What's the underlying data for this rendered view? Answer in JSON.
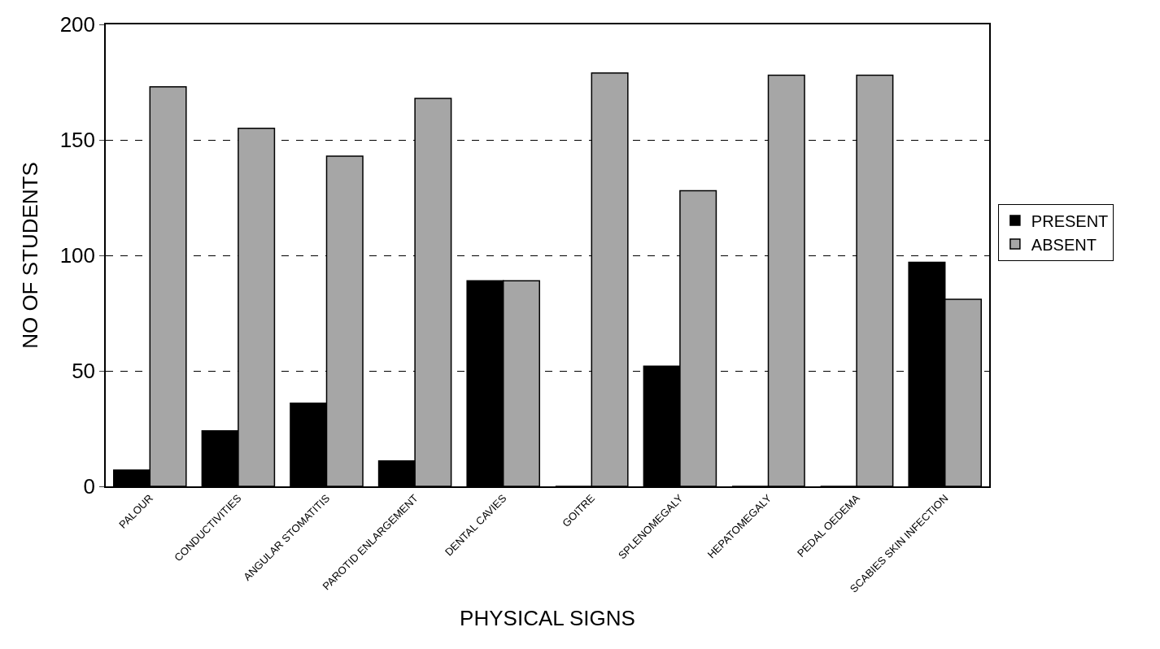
{
  "chart_data": {
    "type": "bar",
    "xlabel": "PHYSICAL SIGNS",
    "ylabel": "NO OF STUDENTS",
    "categories": [
      "PALOUR",
      "CONDUCTIVITIES",
      "ANGULAR STOMATITIS",
      "PAROTID ENLARGEMENT",
      "DENTAL CAVIES",
      "GOITRE",
      "SPLENOMEGALY",
      "HEPATOMEGALY",
      "PEDAL OEDEMA",
      "SCABIES SKIN INFECTION"
    ],
    "series": [
      {
        "name": "PRESENT",
        "color": "#000000",
        "values": [
          7,
          24,
          36,
          11,
          89,
          0,
          52,
          0,
          0,
          97
        ]
      },
      {
        "name": "ABSENT",
        "color": "#a6a6a6",
        "values": [
          173,
          155,
          143,
          168,
          89,
          179,
          128,
          178,
          178,
          81
        ]
      }
    ],
    "ylim": [
      0,
      200
    ],
    "yticks": [
      0,
      50,
      100,
      150,
      200
    ],
    "grid": "y",
    "legend": "right"
  }
}
